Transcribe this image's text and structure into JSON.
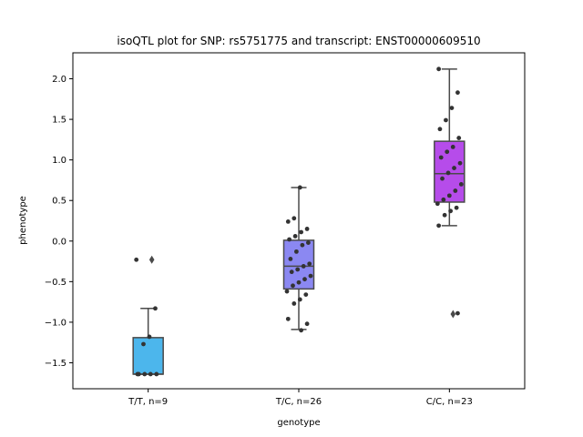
{
  "chart_data": {
    "type": "box",
    "title": "isoQTL plot for SNP: rs5751775 and transcript: ENST00000609510",
    "xlabel": "genotype",
    "ylabel": "phenotype",
    "ylim": [
      -1.82,
      2.32
    ],
    "yticks": [
      -1.5,
      -1.0,
      -0.5,
      0.0,
      0.5,
      1.0,
      1.5,
      2.0
    ],
    "ytick_labels": [
      "−1.5",
      "−1.0",
      "−0.5",
      "0.0",
      "0.5",
      "1.0",
      "1.5",
      "2.0"
    ],
    "categories": [
      "T/T, n=9",
      "T/C, n=26",
      "C/C, n=23"
    ],
    "box_color_line": "#4a4a4a",
    "point_color": "#333333",
    "groups": [
      {
        "label": "T/T, n=9",
        "color": "#4cb6ec",
        "q1": -1.64,
        "median": -1.64,
        "q3": -1.19,
        "whisker_low": -1.64,
        "whisker_high": -0.83,
        "outliers": [
          -0.23
        ],
        "points": [
          -0.23,
          -0.83,
          -1.18,
          -1.27,
          -1.64,
          -1.64,
          -1.64,
          -1.64,
          -1.64
        ]
      },
      {
        "label": "T/C, n=26",
        "color": "#8b88f2",
        "q1": -0.59,
        "median": -0.31,
        "q3": 0.01,
        "whisker_low": -1.09,
        "whisker_high": 0.66,
        "outliers": [],
        "points": [
          0.66,
          0.28,
          0.24,
          0.15,
          0.11,
          0.06,
          0.02,
          -0.02,
          -0.05,
          -0.13,
          -0.22,
          -0.28,
          -0.31,
          -0.35,
          -0.38,
          -0.43,
          -0.47,
          -0.51,
          -0.55,
          -0.62,
          -0.66,
          -0.72,
          -0.77,
          -0.96,
          -1.02,
          -1.1
        ]
      },
      {
        "label": "C/C, n=23",
        "color": "#b64cea",
        "q1": 0.48,
        "median": 0.83,
        "q3": 1.23,
        "whisker_low": 0.19,
        "whisker_high": 2.12,
        "outliers": [
          -0.9
        ],
        "points": [
          2.12,
          1.83,
          1.64,
          1.49,
          1.38,
          1.27,
          1.16,
          1.1,
          1.03,
          0.96,
          0.9,
          0.84,
          0.77,
          0.7,
          0.62,
          0.56,
          0.51,
          0.46,
          0.41,
          0.37,
          0.32,
          0.19,
          -0.89
        ]
      }
    ]
  }
}
